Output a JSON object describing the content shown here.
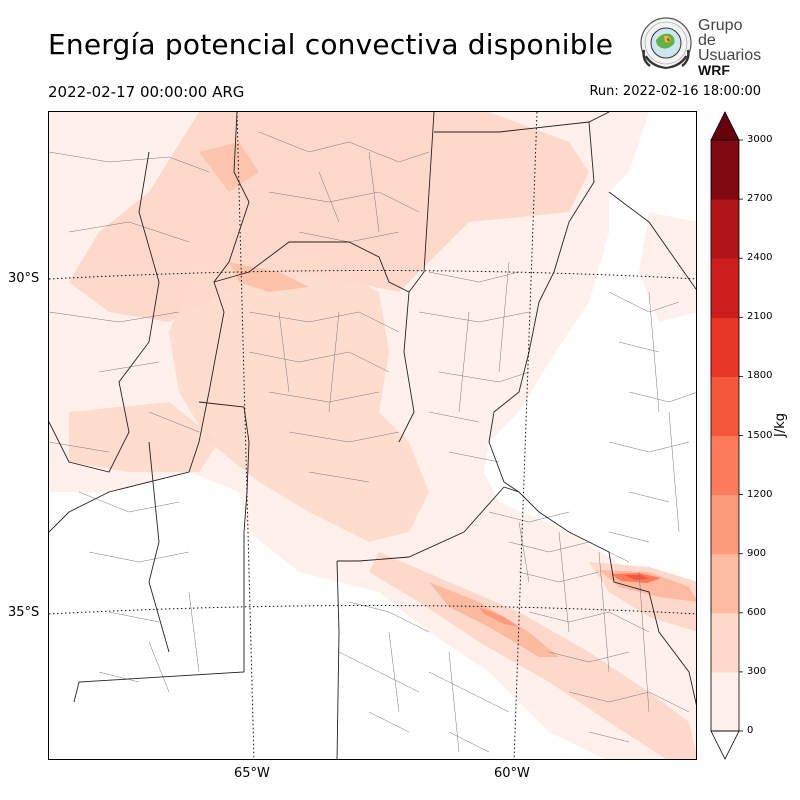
{
  "header": {
    "title": "Energía potencial convectiva disponible",
    "valid_time": "2022-02-17 00:00:00 ARG",
    "run_time": "Run: 2022-02-16 18:00:00"
  },
  "logo": {
    "line1": "Grupo de",
    "line2": "Usuarios",
    "line3": "WRF"
  },
  "map": {
    "lat_labels": [
      "30°S",
      "35°S"
    ],
    "lon_labels": [
      "65°W",
      "60°W"
    ]
  },
  "colorbar": {
    "unit": "J/kg",
    "levels": [
      0,
      300,
      600,
      900,
      1200,
      1500,
      1800,
      2100,
      2400,
      2700,
      3000
    ],
    "level_labels": [
      "0",
      "300",
      "600",
      "900",
      "1200",
      "1500",
      "1800",
      "2100",
      "2400",
      "2700",
      "3000"
    ],
    "colors": [
      "#fff0eb",
      "#fed9cb",
      "#fcbba1",
      "#fc9a7e",
      "#fb7b5c",
      "#f5573d",
      "#e83629",
      "#cd1e1e",
      "#ae1619",
      "#7f0811"
    ],
    "under_color": "#ffffff",
    "over_color": "#67000d"
  }
}
